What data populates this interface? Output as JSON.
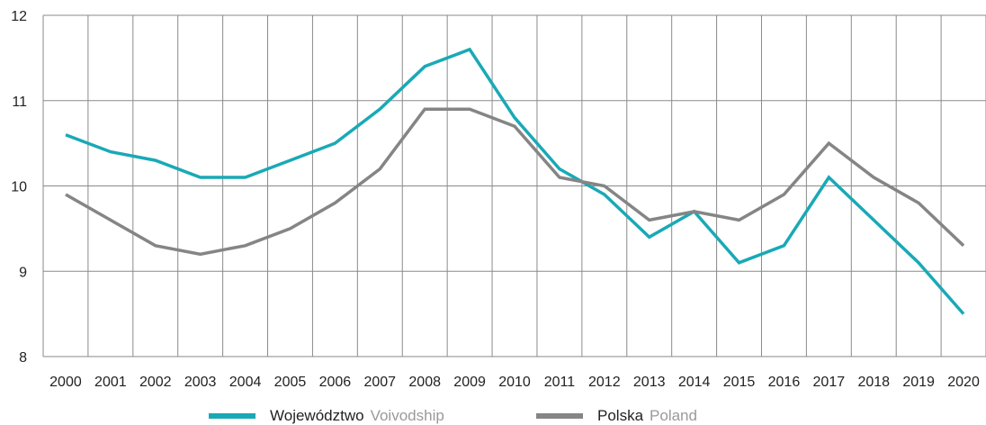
{
  "chart_data": {
    "type": "line",
    "x": [
      "2000",
      "2001",
      "2002",
      "2003",
      "2004",
      "2005",
      "2006",
      "2007",
      "2008",
      "2009",
      "2010",
      "2011",
      "2012",
      "2013",
      "2014",
      "2015",
      "2016",
      "2017",
      "2018",
      "2019",
      "2020"
    ],
    "ylim": [
      8,
      12
    ],
    "yticks": [
      8,
      9,
      10,
      11,
      12
    ],
    "grid": true,
    "legend_position": "bottom",
    "series": [
      {
        "name": "Województwo",
        "name_secondary": "Voivodship",
        "color": "#19a9b6",
        "values": [
          10.6,
          10.4,
          10.3,
          10.1,
          10.1,
          10.3,
          10.5,
          10.9,
          11.4,
          11.6,
          10.8,
          10.2,
          9.9,
          9.4,
          9.7,
          9.1,
          9.3,
          10.1,
          9.6,
          9.1,
          8.5
        ]
      },
      {
        "name": "Polska",
        "name_secondary": "Poland",
        "color": "#858585",
        "values": [
          9.9,
          9.6,
          9.3,
          9.2,
          9.3,
          9.5,
          9.8,
          10.2,
          10.9,
          10.9,
          10.7,
          10.1,
          10.0,
          9.6,
          9.7,
          9.6,
          9.9,
          10.5,
          10.1,
          9.8,
          9.3
        ]
      }
    ]
  }
}
